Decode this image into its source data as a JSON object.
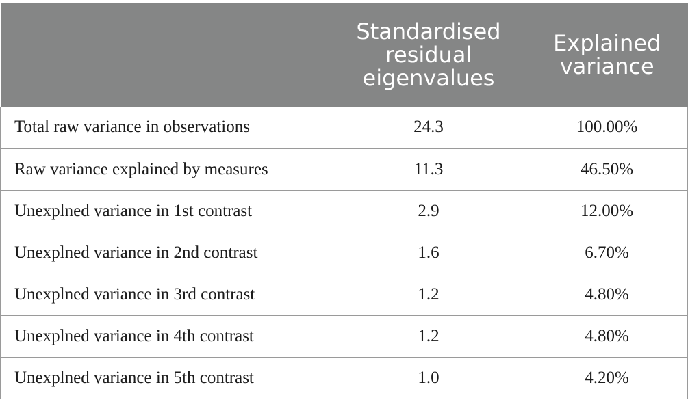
{
  "table": {
    "headers": [
      "",
      "Standardised residual eigenvalues",
      "Explained variance"
    ],
    "rows": [
      {
        "label": "Total raw variance in observations",
        "eigenvalue": "24.3",
        "variance": "100.00%"
      },
      {
        "label": "Raw variance explained by measures",
        "eigenvalue": "11.3",
        "variance": "46.50%"
      },
      {
        "label": "Unexplned variance in 1st contrast",
        "eigenvalue": "2.9",
        "variance": "12.00%"
      },
      {
        "label": "Unexplned variance in 2nd contrast",
        "eigenvalue": "1.6",
        "variance": "6.70%"
      },
      {
        "label": "Unexplned variance in 3rd contrast",
        "eigenvalue": "1.2",
        "variance": "4.80%"
      },
      {
        "label": "Unexplned variance in 4th contrast",
        "eigenvalue": "1.2",
        "variance": "4.80%"
      },
      {
        "label": "Unexplned variance in 5th contrast",
        "eigenvalue": "1.0",
        "variance": "4.20%"
      }
    ]
  }
}
